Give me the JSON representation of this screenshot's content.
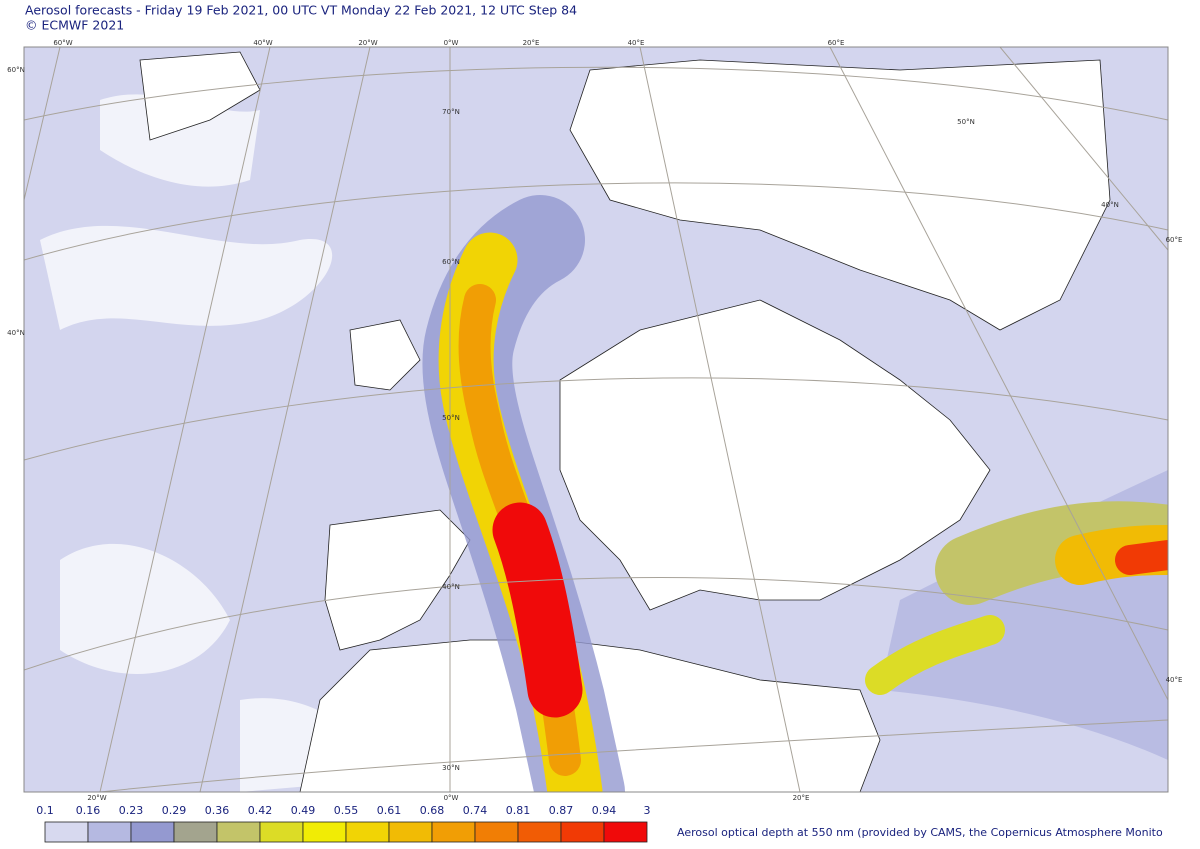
{
  "header": {
    "title": "Aerosol forecasts - Friday 19 Feb 2021, 00 UTC VT Monday 22 Feb 2021, 12 UTC Step 84",
    "copyright": "© ECMWF 2021"
  },
  "graticule_labels": [
    "60°W",
    "40°W",
    "20°W",
    "0°W",
    "20°E",
    "40°E",
    "60°E",
    "60°N",
    "40°N",
    "70°N",
    "60°N",
    "50°N",
    "40°N",
    "30°N",
    "50°N",
    "40°N",
    "60°E",
    "40°E",
    "20°W",
    "0°W",
    "20°E"
  ],
  "colorbar": {
    "ticks": [
      0.1,
      0.16,
      0.23,
      0.29,
      0.36,
      0.42,
      0.49,
      0.55,
      0.61,
      0.68,
      0.74,
      0.81,
      0.87,
      0.94,
      3
    ],
    "colors": [
      "#d7d9ef",
      "#b5b9e1",
      "#9499d0",
      "#a3a48e",
      "#c3c469",
      "#dcdc26",
      "#f1ec05",
      "#f1d405",
      "#f1bb05",
      "#f19e05",
      "#f17e05",
      "#f15c05",
      "#f13a05",
      "#f00a0a"
    ],
    "caption": "Aerosol optical depth at 550 nm (provided by CAMS, the Copernicus Atmosphere Monito"
  }
}
